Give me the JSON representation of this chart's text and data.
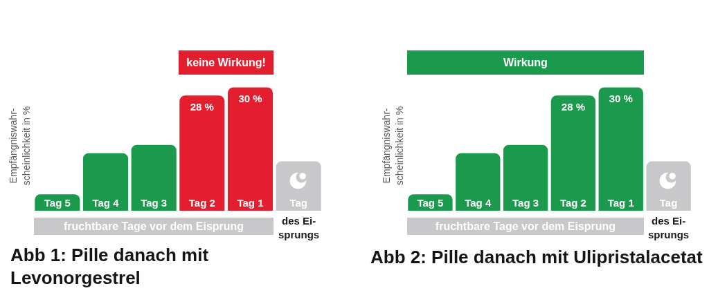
{
  "chart_data": [
    {
      "type": "bar",
      "title": "Abb 1: Pille danach mit\nLevonorgestrel",
      "ylabel": "Empfängniswahr-\nscheinlichkeit in %",
      "categories": [
        "Tag 5",
        "Tag 4",
        "Tag 3",
        "Tag 2",
        "Tag 1",
        "Tag"
      ],
      "values": [
        4,
        14,
        16,
        28,
        30,
        12
      ],
      "colors": [
        "#1b9a4d",
        "#1b9a4d",
        "#1b9a4d",
        "#e31f2f",
        "#e31f2f",
        "#c8c8ca"
      ],
      "value_labels": [
        null,
        null,
        null,
        "28 %",
        "30 %",
        null
      ],
      "annotations": [
        "keine Wirkung!",
        "fruchtbare Tage vor dem Eisprung",
        "des Ei-\nsprungs"
      ]
    },
    {
      "type": "bar",
      "title": "Abb 2: Pille danach mit Ulipristalacetat",
      "ylabel": "Empfängniswahr-\nscheinlichkeit in %",
      "categories": [
        "Tag 5",
        "Tag 4",
        "Tag 3",
        "Tag 2",
        "Tag 1",
        "Tag"
      ],
      "values": [
        4,
        14,
        16,
        28,
        30,
        12
      ],
      "colors": [
        "#1b9a4d",
        "#1b9a4d",
        "#1b9a4d",
        "#1b9a4d",
        "#1b9a4d",
        "#c8c8ca"
      ],
      "value_labels": [
        null,
        null,
        null,
        "28 %",
        "30 %",
        null
      ],
      "annotations": [
        "Wirkung",
        "fruchtbare Tage vor dem Eisprung",
        "des Ei-\nsprungs"
      ]
    }
  ]
}
